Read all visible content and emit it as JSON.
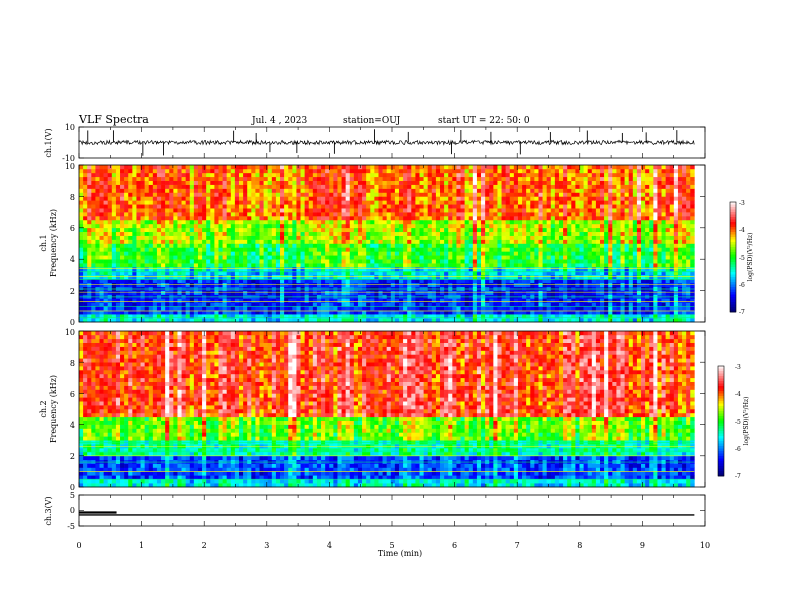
{
  "header": {
    "title": "VLF Spectra",
    "date": "Jul. 4 , 2023",
    "station": "station=OUJ",
    "start": "start UT = 22: 50: 0"
  },
  "chart_data": [
    {
      "type": "line",
      "name": "ch1-waveform",
      "ylabel": "ch.1(V)",
      "ylim": [
        -10,
        10
      ],
      "y_ticks": [
        "10",
        "-10"
      ],
      "xlim": [
        0,
        10
      ],
      "x_end": 9.83,
      "trace_color": "#000000",
      "baseline": 0,
      "spike_times": [
        0.14,
        0.55,
        1.02,
        1.35,
        2.47,
        2.83,
        3.05,
        3.48,
        4.08,
        4.72,
        5.26,
        5.95,
        6.1,
        6.58,
        7.05,
        7.53,
        8.12,
        8.68,
        9.06,
        9.55
      ]
    },
    {
      "type": "heatmap",
      "name": "ch1-spectrogram",
      "ylabel": "ch.1\nFrequency (kHz)",
      "ylim": [
        0,
        10
      ],
      "y_ticks": [
        "0",
        "2",
        "4",
        "6",
        "8",
        "10"
      ],
      "xlim": [
        0,
        10
      ],
      "x_end": 9.83,
      "colorbar": {
        "label": "log(PSD)(V²/Hz)",
        "range": [
          -7,
          -3
        ],
        "ticks": [
          "-3",
          "-4",
          "-5",
          "-6",
          "-7"
        ],
        "colors": [
          "#000070",
          "#0000ff",
          "#00ffff",
          "#00ff00",
          "#ffff00",
          "#ff0000",
          "#ffffff"
        ]
      },
      "bands": [
        {
          "f": [
            0,
            0.4
          ],
          "level": -5.6
        },
        {
          "f": [
            0.4,
            2.8
          ],
          "level": -6.3
        },
        {
          "f": [
            2.8,
            3.6
          ],
          "level": -5.7
        },
        {
          "f": [
            3.6,
            5.0
          ],
          "level": -5.0
        },
        {
          "f": [
            5.0,
            6.5
          ],
          "level": -4.6
        },
        {
          "f": [
            6.5,
            10
          ],
          "level": -4.0
        }
      ],
      "lines_khz": [
        0.3,
        0.7,
        1.0,
        1.3,
        1.6,
        1.9,
        2.1,
        2.4,
        2.7,
        2.9,
        3.2,
        3.4
      ]
    },
    {
      "type": "heatmap",
      "name": "ch2-spectrogram",
      "ylabel": "ch.2\nFrequency (kHz)",
      "ylim": [
        0,
        10
      ],
      "y_ticks": [
        "0",
        "2",
        "4",
        "6",
        "8",
        "10"
      ],
      "xlim": [
        0,
        10
      ],
      "x_end": 9.83,
      "colorbar": {
        "label": "log(PSD)(V²/Hz)",
        "range": [
          -7,
          -3
        ],
        "ticks": [
          "-3",
          "-4",
          "-5",
          "-6",
          "-7"
        ],
        "colors": [
          "#000070",
          "#0000ff",
          "#00ffff",
          "#00ff00",
          "#ffff00",
          "#ff0000",
          "#ffffff"
        ]
      },
      "bands": [
        {
          "f": [
            0,
            0.4
          ],
          "level": -5.6
        },
        {
          "f": [
            0.4,
            2.0
          ],
          "level": -6.2
        },
        {
          "f": [
            2.0,
            3.0
          ],
          "level": -5.4
        },
        {
          "f": [
            3.0,
            4.5
          ],
          "level": -4.8
        },
        {
          "f": [
            4.5,
            10
          ],
          "level": -3.8
        }
      ],
      "lines_khz": [
        0.5,
        1.0,
        1.6,
        2.0,
        2.3,
        2.6,
        2.85
      ]
    },
    {
      "type": "line",
      "name": "ch3-waveform",
      "ylabel": "ch.3(V)",
      "ylim": [
        -5,
        5
      ],
      "y_ticks": [
        "5",
        "0",
        "-5"
      ],
      "xlim": [
        0,
        10
      ],
      "x_end": 9.83,
      "xlabel": "Time (min)",
      "x_ticks": [
        "0",
        "1",
        "2",
        "3",
        "4",
        "5",
        "6",
        "7",
        "8",
        "9",
        "10"
      ],
      "series": [
        {
          "x": [
            0,
            0.6
          ],
          "y": [
            0,
            0
          ]
        },
        {
          "x": [
            0,
            9.83
          ],
          "y": [
            -0.8,
            -0.8
          ]
        }
      ]
    }
  ]
}
